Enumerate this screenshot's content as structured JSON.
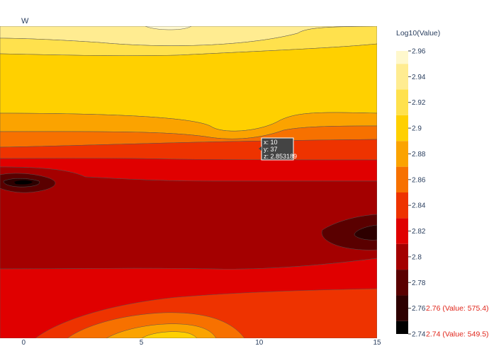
{
  "chart_data": {
    "type": "contour",
    "title": "W",
    "colorbar_title": "Log10(Value)",
    "x_ticks": [
      0,
      5,
      10,
      15
    ],
    "xlim": [
      -1,
      15
    ],
    "ylim": [
      0,
      50
    ],
    "zlim": [
      2.74,
      2.96
    ],
    "color_levels": [
      2.74,
      2.76,
      2.78,
      2.8,
      2.82,
      2.84,
      2.86,
      2.88,
      2.9,
      2.92,
      2.94,
      2.96
    ],
    "colorscale": [
      "#000000",
      "#2d0000",
      "#5a0000",
      "#a40000",
      "#e00000",
      "#ee3300",
      "#f77100",
      "#fba300",
      "#ffd000",
      "#ffe14d",
      "#ffec91",
      "#fff8cc"
    ],
    "colorbar_ticks": [
      "2.74",
      "2.76",
      "2.78",
      "2.8",
      "2.82",
      "2.84",
      "2.86",
      "2.88",
      "2.9",
      "2.92",
      "2.94",
      "2.96"
    ],
    "contour_bands": [
      {
        "level": 2.94,
        "y": [
          50,
          50,
          50,
          50
        ]
      },
      {
        "level": 2.92,
        "y": [
          46.3,
          46.6,
          46.9,
          47.2
        ]
      },
      {
        "level": 2.9,
        "y": [
          42.6,
          42.9,
          43.2,
          43.5
        ]
      },
      {
        "level": 2.88,
        "y": [
          38.8,
          39.1,
          39.4,
          39.7
        ]
      },
      {
        "level": 2.86,
        "y": [
          35.1,
          35.4,
          35.7,
          36.0
        ]
      },
      {
        "level": 2.84,
        "y": [
          33.5,
          33.6,
          33.7,
          33.8
        ]
      },
      {
        "level": 2.82,
        "y": [
          31.2,
          31.1,
          31.0,
          31.0
        ]
      },
      {
        "level": 2.8,
        "y": [
          27.5,
          27.4,
          27.2,
          27.0
        ]
      },
      {
        "level": 2.78,
        "y": [
          22.0,
          22.5,
          23.0,
          23.4
        ]
      },
      {
        "level": 2.8,
        "y": [
          14.0,
          13.0,
          12.0,
          11.0
        ]
      },
      {
        "level": 2.82,
        "y": [
          8.0,
          7.5,
          6.5,
          6.0
        ]
      },
      {
        "level": 2.84,
        "y": [
          2.0,
          2.0,
          3.0,
          3.0
        ]
      }
    ],
    "annotations": [
      {
        "text": "2.76 (Value: 575.4)",
        "level": 2.76
      },
      {
        "text": "2.74 (Value: 549.5)",
        "level": 2.74
      }
    ],
    "hover": {
      "x_label": "x: 10",
      "y_label": "y: 37",
      "z_label": "z: 2.853189"
    }
  }
}
